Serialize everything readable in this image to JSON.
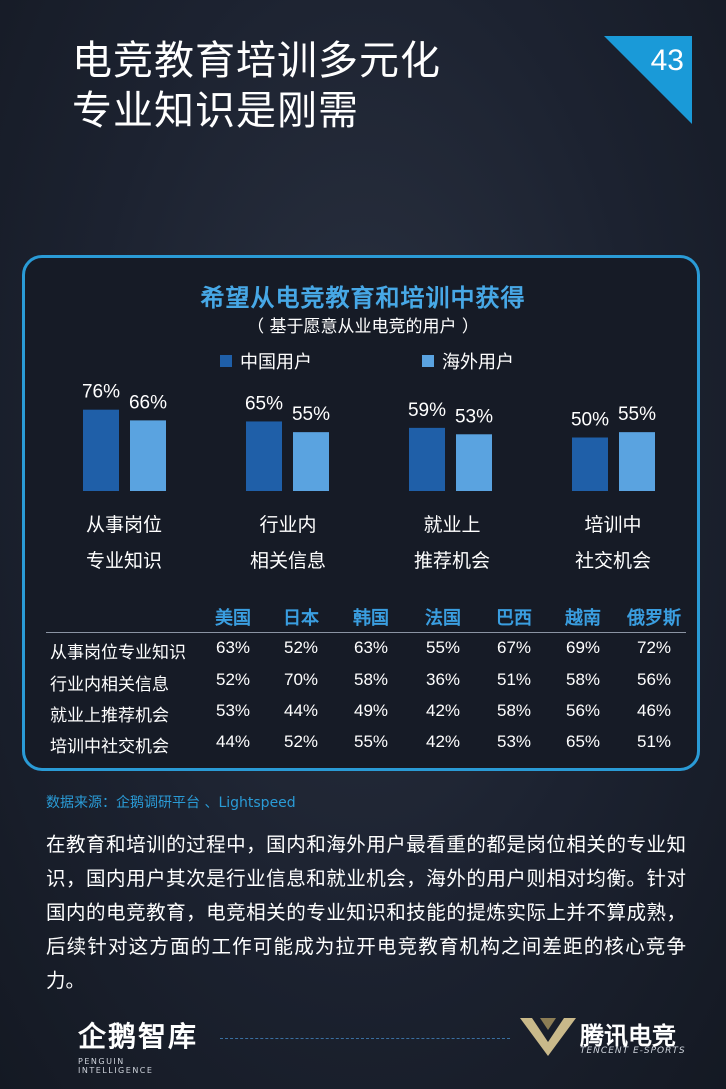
{
  "header": {
    "title_lines": [
      "电竞教育培训多元化",
      "专业知识是刚需"
    ],
    "page_number": "43"
  },
  "chart_data": {
    "type": "bar",
    "title": "希望从电竞教育和培训中获得",
    "subtitle": "（ 基于愿意从业电竞的用户 ）",
    "categories": [
      [
        "从事岗位",
        "专业知识"
      ],
      [
        "行业内",
        "相关信息"
      ],
      [
        "就业上",
        "推荐机会"
      ],
      [
        "培训中",
        "社交机会"
      ]
    ],
    "series": [
      {
        "name": "中国用户",
        "values": [
          76,
          65,
          59,
          50
        ],
        "labels": [
          "76%",
          "65%",
          "59%",
          "50%"
        ],
        "color": "#1f5fa8"
      },
      {
        "name": "海外用户",
        "values": [
          66,
          55,
          53,
          55
        ],
        "labels": [
          "66%",
          "55%",
          "53%",
          "55%"
        ],
        "color": "#5aa3e0"
      }
    ],
    "ylim": [
      0,
      100
    ],
    "legend_position": "top-center"
  },
  "table": {
    "columns": [
      "美国",
      "日本",
      "韩国",
      "法国",
      "巴西",
      "越南",
      "俄罗斯"
    ],
    "rows": [
      {
        "label": "从事岗位专业知识",
        "values": [
          "63%",
          "52%",
          "63%",
          "55%",
          "67%",
          "69%",
          "72%"
        ]
      },
      {
        "label": "行业内相关信息",
        "values": [
          "52%",
          "70%",
          "58%",
          "36%",
          "51%",
          "58%",
          "56%"
        ]
      },
      {
        "label": "就业上推荐机会",
        "values": [
          "53%",
          "44%",
          "49%",
          "42%",
          "58%",
          "56%",
          "46%"
        ]
      },
      {
        "label": "培训中社交机会",
        "values": [
          "44%",
          "52%",
          "55%",
          "42%",
          "53%",
          "65%",
          "51%"
        ]
      }
    ],
    "header_color": "#3a9ee0"
  },
  "source": "数据来源：企鹅调研平台 、Lightspeed",
  "body_text": "在教育和培训的过程中，国内和海外用户最看重的都是岗位相关的专业知识，国内用户其次是行业信息和就业机会，海外的用户则相对均衡。针对国内的电竞教育，电竞相关的专业知识和技能的提炼实际上并不算成熟，后续针对这方面的工作可能成为拉开电竞教育机构之间差距的核心竞争力。",
  "footer": {
    "left_logo": {
      "name": "企鹅智库",
      "sub": "PENGUIN INTELLIGENCE"
    },
    "right_logo": {
      "name": "腾讯电竞",
      "sub": "TENCENT E-SPORTS"
    }
  },
  "colors": {
    "accent": "#2a9bd6",
    "china_bar": "#1f5fa8",
    "overseas_bar": "#5aa3e0"
  }
}
